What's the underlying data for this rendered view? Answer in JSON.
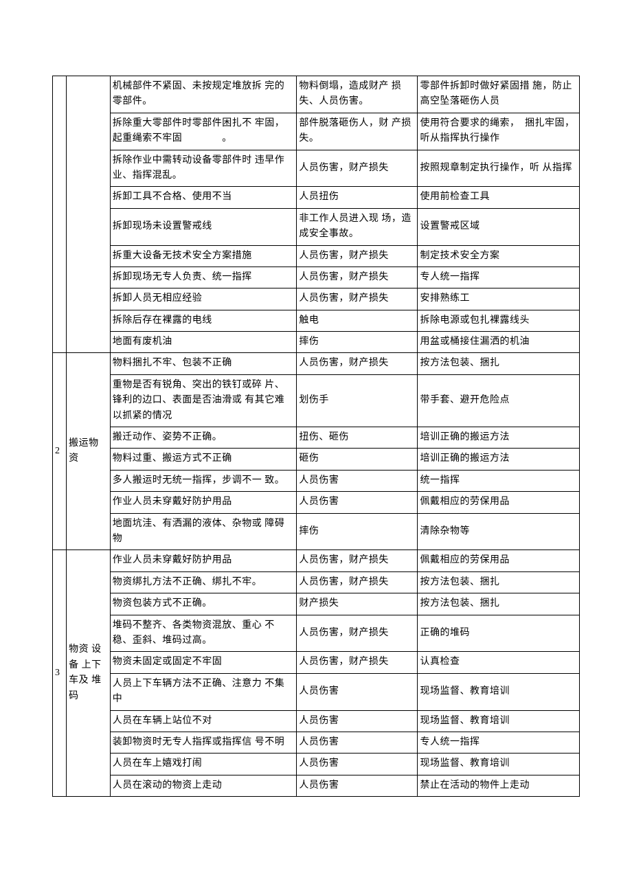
{
  "sections": [
    {
      "idx": "",
      "cat": "",
      "rows": [
        {
          "h": "机械部件不紧固、未按规定堆放拆 完的零部件。",
          "r": "物料倒塌，造成财产 损失、人员伤害。",
          "m": "零部件拆卸时做好紧固措 施，防止高空坠落砸伤人员"
        },
        {
          "h": "拆除重大零部件时零部件困扎不 牢固，起重绳索不牢固　　　　。",
          "r": "部件脱落砸伤人，财 产损失。",
          "m": "使用符合要求的绳索，　捆扎牢固，听从指挥执行操作"
        },
        {
          "h": "拆除作业中需转动设备零部件时 违早作业、指挥混乱。",
          "r": "人员伤害，财产损失",
          "m": "按照规章制定执行操作，听 从指挥"
        },
        {
          "h": "拆卸工具不合格、使用不当",
          "r": "人员扭伤",
          "m": "使用前检查工具"
        },
        {
          "h": "拆卸现场未设置警戒线",
          "r": "非工作人员进入现 场，造成安全事故。",
          "m": "设置警戒区域"
        },
        {
          "h": "拆重大设备无技术安全方案措施",
          "r": "人员伤害，财产损失",
          "m": "制定技术安全方案"
        },
        {
          "h": "拆卸现场无专人负责、统一指挥",
          "r": "人员伤害，财产损失",
          "m": "专人统一指挥"
        },
        {
          "h": "拆卸人员无相应经验",
          "r": "人员伤害，财产损失",
          "m": "安排熟练工"
        },
        {
          "h": "拆除后存在裸露的电线",
          "r": "触电",
          "m": "拆除电源或包扎裸露线头"
        },
        {
          "h": "地面有废机油",
          "r": "摔伤",
          "m": "用盆或桶接住漏洒的机油"
        }
      ]
    },
    {
      "idx": "2",
      "cat": "搬运物资",
      "rows": [
        {
          "h": "物料捆扎不牢、包装不正确",
          "r": "人员伤害，财产损失",
          "m": "按方法包装、捆扎"
        },
        {
          "h": "重物是否有锐角、突出的铁钉或碎 片、锋利的边口、表面是否油滑或 有其它难以抓紧的情况",
          "r": "划伤手",
          "m": "带手套、避开危险点"
        },
        {
          "h": "搬迁动作、姿势不正确。",
          "r": "扭伤、砸伤",
          "m": "培训正确的搬运方法"
        },
        {
          "h": "物料过重、搬运方式不正确",
          "r": "砸伤",
          "m": "培训正确的搬运方法"
        },
        {
          "h": "多人搬运时无统一指挥，步调不一 致。",
          "r": "人员伤害",
          "m": "统一指挥"
        },
        {
          "h": "作业人员未穿戴好防护用品",
          "r": "人员伤害",
          "m": "佩戴相应的劳保用品"
        },
        {
          "h": "地面坑洼、有洒漏的液体、杂物或 障碍物",
          "r": "摔伤",
          "m": "清除杂物等"
        }
      ]
    },
    {
      "idx": "3",
      "cat": "物资 设备 上下车及 堆码",
      "rows": [
        {
          "h": "作业人员未穿戴好防护用品",
          "r": "人员伤害，财产损失",
          "m": "佩戴相应的劳保用品"
        },
        {
          "h": "物资绑扎方法不正确、绑扎不牢。",
          "r": "人员伤害，财产损失",
          "m": "按方法包装、捆扎"
        },
        {
          "h": "物资包装方式不正确。",
          "r": "财产损失",
          "m": "按方法包装、捆扎"
        },
        {
          "h": "堆码不整齐、各类物资混放、重心 不稳、歪斜、堆码过高。",
          "r": "人员伤害，财产损失",
          "m": "正确的堆码"
        },
        {
          "h": "物资未固定或固定不牢固",
          "r": "人员伤害，财产损失",
          "m": "认真检查"
        },
        {
          "h": "人员上下车辆方法不正确、注意力 不集中",
          "r": "人员伤害",
          "m": "现场监督、教育培训"
        },
        {
          "h": "人员在车辆上站位不对",
          "r": "人员伤害",
          "m": "现场监督、教育培训"
        },
        {
          "h": "装卸物资时无专人指挥或指挥信 号不明",
          "r": "人员伤害",
          "m": "专人统一指挥"
        },
        {
          "h": "人员在车上嬉戏打闹",
          "r": "人员伤害",
          "m": "现场监督、教育培训"
        },
        {
          "h": "人员在滚动的物资上走动",
          "r": "人员伤害",
          "m": "禁止在活动的物件上走动"
        }
      ]
    }
  ]
}
